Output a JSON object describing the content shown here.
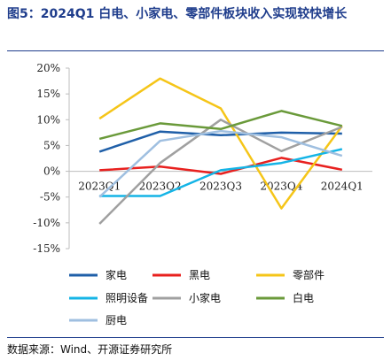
{
  "title": "图5：2024Q1 白电、小家电、零部件板块收入实现较快增长",
  "source": "数据来源：Wind、开源证券研究所",
  "chart_data": {
    "type": "line",
    "categories": [
      "2023Q1",
      "2023Q2",
      "2023Q3",
      "2023Q4",
      "2024Q1"
    ],
    "ylim": [
      -15,
      20
    ],
    "yticks": [
      20,
      15,
      10,
      5,
      0,
      -5,
      -10,
      -15
    ],
    "ytick_labels": [
      "20%",
      "15%",
      "10%",
      "5%",
      "0%",
      "-5%",
      "-10%",
      "-15%"
    ],
    "grid": false,
    "legend_position": "bottom",
    "series": [
      {
        "name": "家电",
        "color": "#1f5fa8",
        "values": [
          3.8,
          7.7,
          7.0,
          7.5,
          7.3
        ]
      },
      {
        "name": "黑电",
        "color": "#e8201e",
        "values": [
          0.2,
          0.9,
          -0.5,
          2.6,
          0.3
        ]
      },
      {
        "name": "零部件",
        "color": "#f5c518",
        "values": [
          10.2,
          18.0,
          12.2,
          -7.2,
          8.8
        ]
      },
      {
        "name": "照明设备",
        "color": "#14b4e6",
        "values": [
          -4.8,
          -4.8,
          0.2,
          1.6,
          4.3
        ]
      },
      {
        "name": "小家电",
        "color": "#a0a0a0",
        "values": [
          -10.2,
          1.6,
          10.0,
          3.9,
          8.6
        ]
      },
      {
        "name": "白电",
        "color": "#6a9a3a",
        "values": [
          6.3,
          9.3,
          8.2,
          11.7,
          8.8
        ]
      },
      {
        "name": "厨电",
        "color": "#9fbfe0",
        "values": [
          -5.0,
          5.9,
          7.8,
          6.6,
          3.0
        ]
      }
    ]
  }
}
